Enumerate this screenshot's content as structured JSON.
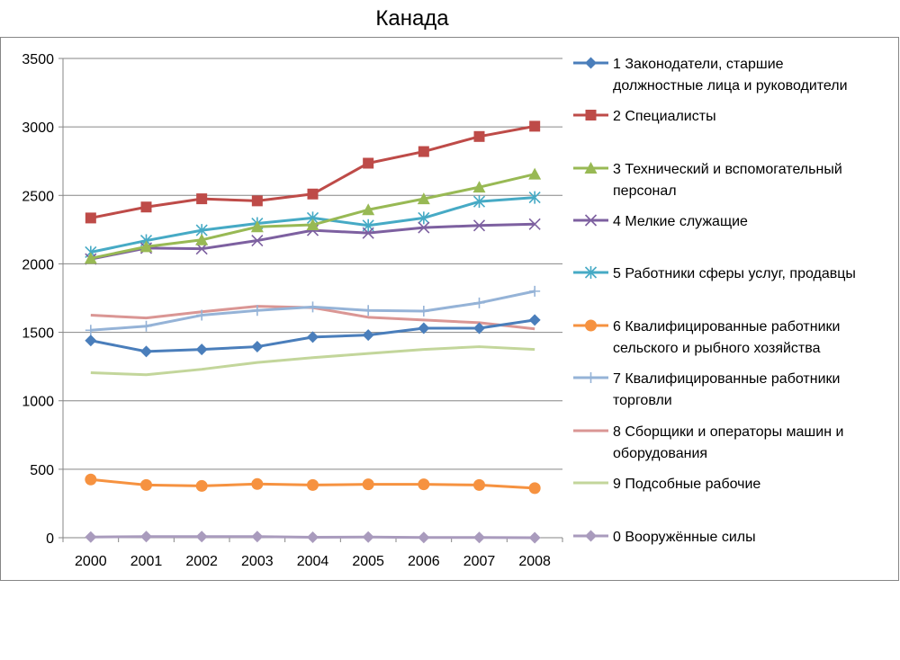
{
  "chart_data": {
    "type": "line",
    "title": "Канада",
    "xlabel": "",
    "ylabel": "",
    "x": [
      "2000",
      "2001",
      "2002",
      "2003",
      "2004",
      "2005",
      "2006",
      "2007",
      "2008"
    ],
    "ylim": [
      0,
      3500
    ],
    "yticks": [
      0,
      500,
      1000,
      1500,
      2000,
      2500,
      3000,
      3500
    ],
    "grid": true,
    "legend_position": "right",
    "series": [
      {
        "name": "1  Законодатели, старшие должностные лица и руководители",
        "lines": [
          "1  Законодатели, старшие",
          "должностные лица и руководители"
        ],
        "color": "#4A7EBB",
        "marker": "diamond",
        "values": [
          1440,
          1360,
          1375,
          1395,
          1465,
          1480,
          1530,
          1530,
          1590
        ]
      },
      {
        "name": "2 Специалисты",
        "lines": [
          "2 Специалисты"
        ],
        "color": "#BE4B48",
        "marker": "square",
        "values": [
          2335,
          2415,
          2475,
          2460,
          2510,
          2735,
          2820,
          2930,
          3005
        ]
      },
      {
        "name": "3 Технический и вспомогательный персонал",
        "lines": [
          "3 Технический и вспомогательный",
          "персонал"
        ],
        "color": "#98B954",
        "marker": "triangle",
        "values": [
          2040,
          2125,
          2175,
          2270,
          2285,
          2395,
          2475,
          2560,
          2655
        ]
      },
      {
        "name": "4 Мелкие служащие",
        "lines": [
          "4 Мелкие служащие"
        ],
        "color": "#7D60A0",
        "marker": "x",
        "values": [
          2035,
          2115,
          2110,
          2170,
          2245,
          2225,
          2265,
          2280,
          2290
        ]
      },
      {
        "name": "5 Работники сферы услуг, продавцы",
        "lines": [
          "5 Работники сферы услуг, продавцы"
        ],
        "color": "#46AAC5",
        "marker": "star",
        "values": [
          2085,
          2170,
          2245,
          2295,
          2335,
          2280,
          2335,
          2455,
          2485
        ]
      },
      {
        "name": "6 Квалифицированные  работники сельского и рыбного хозяйства",
        "lines": [
          "6 Квалифицированные  работники",
          "сельского и рыбного хозяйства"
        ],
        "color": "#F69240",
        "marker": "circle",
        "values": [
          425,
          385,
          378,
          392,
          385,
          390,
          390,
          385,
          362
        ]
      },
      {
        "name": "7 Квалифицированные работники торговли",
        "lines": [
          "7 Квалифицированные работники",
          "торговли"
        ],
        "color": "#95B3D7",
        "marker": "plus",
        "values": [
          1515,
          1545,
          1625,
          1660,
          1685,
          1660,
          1655,
          1715,
          1800
        ]
      },
      {
        "name": "8 Сборщики и операторы машин и оборудования",
        "lines": [
          "8 Сборщики и операторы машин и",
          "оборудования"
        ],
        "color": "#DA9694",
        "marker": "none",
        "values": [
          1625,
          1605,
          1650,
          1690,
          1680,
          1610,
          1590,
          1570,
          1525
        ]
      },
      {
        "name": "9 Подсобные рабочие",
        "lines": [
          "9 Подсобные рабочие"
        ],
        "color": "#C3D69B",
        "marker": "none",
        "values": [
          1205,
          1190,
          1230,
          1280,
          1315,
          1345,
          1375,
          1395,
          1375
        ]
      },
      {
        "name": "0 Вооружённые силы",
        "lines": [
          "0 Вооружённые силы"
        ],
        "color": "#A99BBD",
        "marker": "diamond",
        "values": [
          5,
          8,
          8,
          8,
          3,
          5,
          2,
          2,
          0
        ]
      }
    ]
  }
}
